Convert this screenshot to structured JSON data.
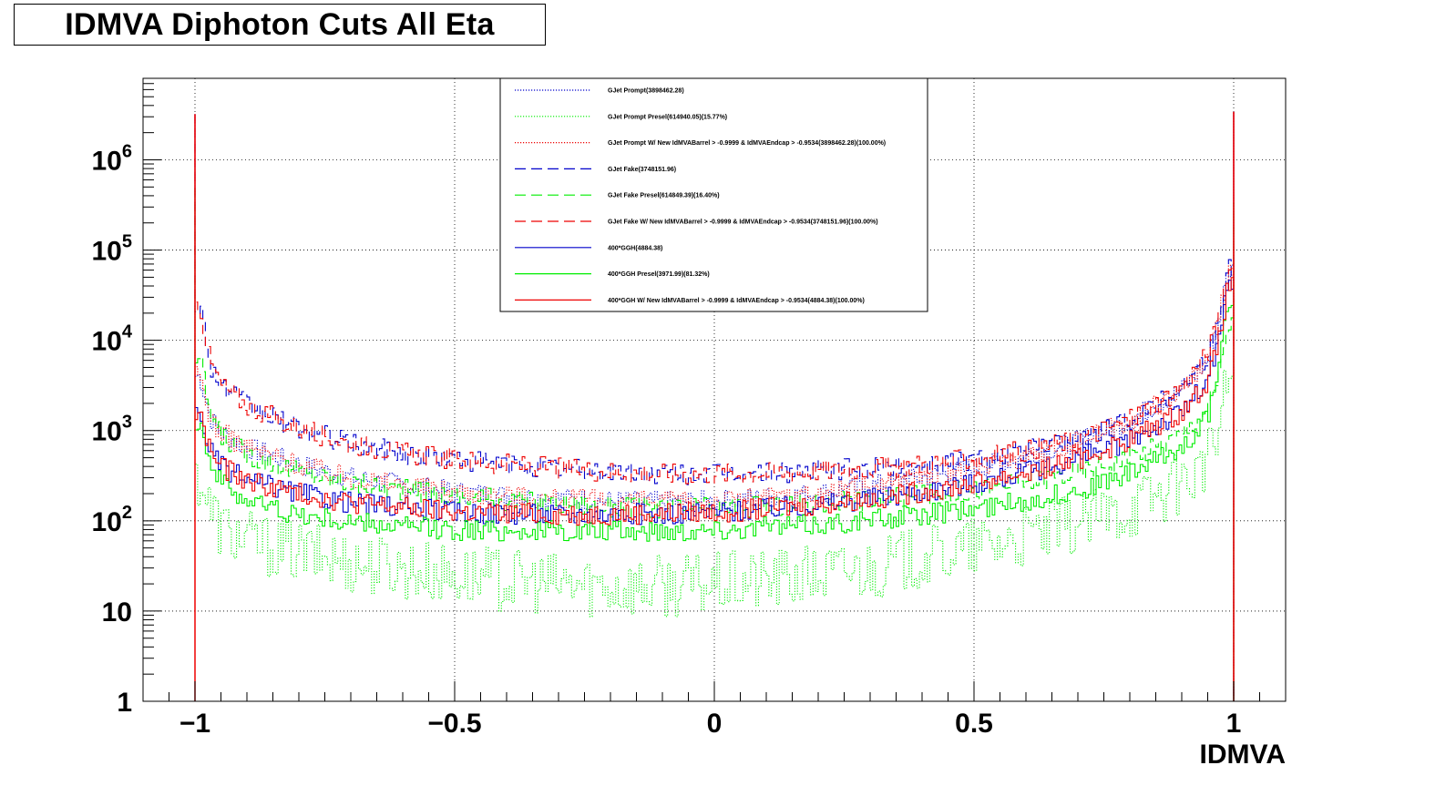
{
  "chart_data": {
    "type": "line",
    "title": "IDMVA Diphoton Cuts All Eta",
    "xlabel": "IDMVA",
    "ylabel": "",
    "xlim": [
      -1.1,
      1.1
    ],
    "ylim": [
      1,
      8000000
    ],
    "yscale": "log",
    "grid": true,
    "legend_position": "top-center",
    "x_tick_labels": [
      "−1",
      "−0.5",
      "0",
      "0.5",
      "1"
    ],
    "x_ticks": [
      -1,
      -0.5,
      0,
      0.5,
      1
    ],
    "y_ticks": [
      1,
      10,
      100,
      1000,
      10000,
      100000,
      1000000
    ],
    "y_tick_labels": [
      {
        "base": "1",
        "exp": ""
      },
      {
        "base": "10",
        "exp": ""
      },
      {
        "base": "10",
        "exp": "2"
      },
      {
        "base": "10",
        "exp": "3"
      },
      {
        "base": "10",
        "exp": "4"
      },
      {
        "base": "10",
        "exp": "5"
      },
      {
        "base": "10",
        "exp": "6"
      }
    ],
    "curve_x": [
      -0.99,
      -0.97,
      -0.95,
      -0.9,
      -0.8,
      -0.7,
      -0.6,
      -0.5,
      -0.4,
      -0.3,
      -0.2,
      -0.1,
      0,
      0.1,
      0.2,
      0.3,
      0.4,
      0.5,
      0.6,
      0.7,
      0.8,
      0.9,
      0.95,
      0.97,
      0.99
    ],
    "series": [
      {
        "name": "GJet Prompt(3898462.28)",
        "color": "#0000cc",
        "style": "dotted",
        "values": [
          4000,
          1400,
          950,
          650,
          420,
          300,
          250,
          210,
          190,
          175,
          165,
          160,
          165,
          180,
          200,
          240,
          300,
          380,
          520,
          760,
          1300,
          2800,
          6000,
          14000,
          60000
        ]
      },
      {
        "name": "GJet Prompt Presel(614940.05)(15.77%)",
        "color": "#00ee00",
        "style": "dotted",
        "values": [
          300,
          130,
          85,
          60,
          45,
          35,
          30,
          25,
          22,
          20,
          19,
          19,
          20,
          22,
          25,
          30,
          38,
          50,
          65,
          90,
          140,
          260,
          450,
          900,
          4000
        ]
      },
      {
        "name": "GJet Prompt W/ New IdMVABarrel > -0.9999 & IdMVAEndcap > -0.9534(3898462.28)(100.00%)",
        "color": "#ee0000",
        "style": "dotted",
        "values": [
          4000,
          1400,
          950,
          650,
          420,
          300,
          250,
          210,
          190,
          175,
          165,
          160,
          165,
          180,
          200,
          240,
          300,
          380,
          520,
          760,
          1300,
          2800,
          6000,
          14000,
          60000
        ]
      },
      {
        "name": "GJet Fake(3748151.96)",
        "color": "#0000cc",
        "style": "dashed",
        "values": [
          25000,
          5500,
          3200,
          1900,
          1050,
          720,
          560,
          480,
          420,
          380,
          350,
          330,
          330,
          340,
          360,
          380,
          420,
          480,
          600,
          800,
          1300,
          3000,
          7000,
          15000,
          60000
        ]
      },
      {
        "name": "GJet Fake Presel(614849.39)(16.40%)",
        "color": "#00ee00",
        "style": "dashed",
        "values": [
          6000,
          1500,
          900,
          550,
          350,
          260,
          220,
          190,
          170,
          155,
          145,
          140,
          140,
          145,
          155,
          170,
          190,
          220,
          270,
          350,
          500,
          900,
          1800,
          3500,
          15000
        ]
      },
      {
        "name": "GJet Fake W/ New IdMVABarrel > -0.9999 & IdMVAEndcap > -0.9534(3748151.96)(100.00%)",
        "color": "#ee0000",
        "style": "dashed",
        "values": [
          25000,
          5500,
          3200,
          1900,
          1050,
          720,
          560,
          480,
          420,
          380,
          350,
          330,
          330,
          340,
          360,
          380,
          420,
          480,
          600,
          800,
          1300,
          3000,
          7000,
          15000,
          60000
        ]
      },
      {
        "name": "400*GGH(4884.38)",
        "color": "#0000cc",
        "style": "solid",
        "values": [
          1500,
          600,
          400,
          280,
          200,
          160,
          140,
          125,
          120,
          118,
          118,
          120,
          125,
          135,
          150,
          175,
          210,
          260,
          340,
          480,
          780,
          1600,
          3500,
          8000,
          40000
        ]
      },
      {
        "name": "400*GGH Presel(3971.99)(81.32%)",
        "color": "#00ee00",
        "style": "solid",
        "values": [
          1300,
          450,
          270,
          170,
          115,
          95,
          85,
          80,
          78,
          76,
          76,
          78,
          80,
          85,
          92,
          102,
          115,
          135,
          165,
          215,
          330,
          650,
          1400,
          3500,
          30000
        ]
      },
      {
        "name": "400*GGH W/ New IdMVABarrel > -0.9999 & IdMVAEndcap > -0.9534(4884.38)(100.00%)",
        "color": "#ee0000",
        "style": "solid",
        "values": [
          1500,
          600,
          400,
          280,
          200,
          160,
          140,
          125,
          120,
          118,
          118,
          120,
          125,
          135,
          150,
          175,
          210,
          260,
          340,
          480,
          780,
          1600,
          3500,
          8000,
          40000
        ]
      }
    ],
    "end_spikes": [
      {
        "x": -1,
        "value": 3200000
      },
      {
        "x": 1,
        "value": 3400000
      }
    ]
  }
}
